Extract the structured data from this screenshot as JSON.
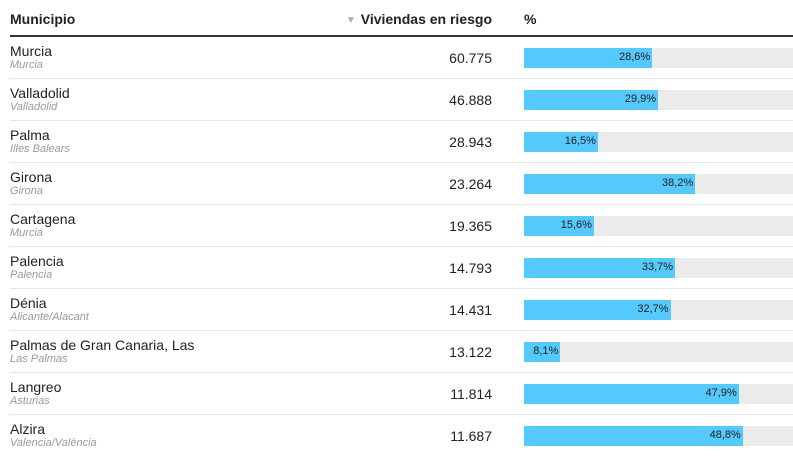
{
  "header": {
    "municipio": "Municipio",
    "viviendas": "Viviendas en riesgo",
    "sort_icon": "triangle-down-icon",
    "pct": "%"
  },
  "colors": {
    "bar": "#55c8fc",
    "track": "#ebebeb"
  },
  "rows": [
    {
      "name": "Murcia",
      "province": "Murcia",
      "viviendas": "60.775",
      "pct_label": "28,6%",
      "pct": 28.6
    },
    {
      "name": "Valladolid",
      "province": "Valladolid",
      "viviendas": "46.888",
      "pct_label": "29,9%",
      "pct": 29.9
    },
    {
      "name": "Palma",
      "province": "Illes Balears",
      "viviendas": "28.943",
      "pct_label": "16,5%",
      "pct": 16.5
    },
    {
      "name": "Girona",
      "province": "Girona",
      "viviendas": "23.264",
      "pct_label": "38,2%",
      "pct": 38.2
    },
    {
      "name": "Cartagena",
      "province": "Murcia",
      "viviendas": "19.365",
      "pct_label": "15,6%",
      "pct": 15.6
    },
    {
      "name": "Palencia",
      "province": "Palencia",
      "viviendas": "14.793",
      "pct_label": "33,7%",
      "pct": 33.7
    },
    {
      "name": "Dénia",
      "province": "Alicante/Alacant",
      "viviendas": "14.431",
      "pct_label": "32,7%",
      "pct": 32.7
    },
    {
      "name": "Palmas de Gran Canaria, Las",
      "province": "Las Palmas",
      "viviendas": "13.122",
      "pct_label": "8,1%",
      "pct": 8.1
    },
    {
      "name": "Langreo",
      "province": "Asturias",
      "viviendas": "11.814",
      "pct_label": "47,9%",
      "pct": 47.9
    },
    {
      "name": "Alzira",
      "province": "Valencia/València",
      "viviendas": "11.687",
      "pct_label": "48,8%",
      "pct": 48.8
    }
  ]
}
